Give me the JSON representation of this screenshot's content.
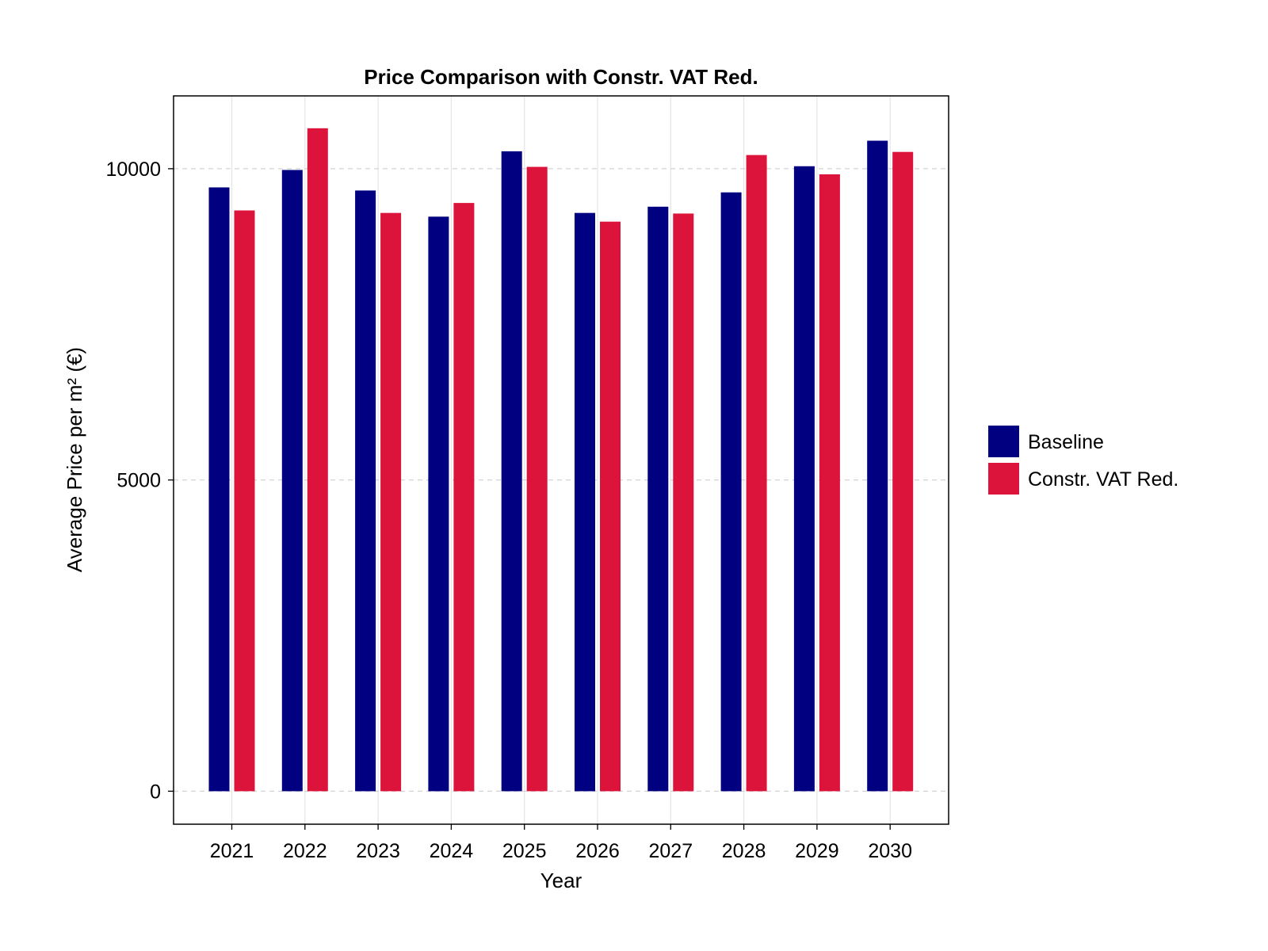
{
  "chart_data": {
    "type": "bar",
    "title": "Price Comparison with Constr. VAT Red.",
    "xlabel": "Year",
    "ylabel": "Average Price per m² (€)",
    "categories": [
      "2021",
      "2022",
      "2023",
      "2024",
      "2025",
      "2026",
      "2027",
      "2028",
      "2029",
      "2030"
    ],
    "series": [
      {
        "name": "Baseline",
        "color": "#000080",
        "values": [
          9700,
          9980,
          9650,
          9230,
          10280,
          9290,
          9390,
          9620,
          10040,
          10450
        ]
      },
      {
        "name": "Constr. VAT Red.",
        "color": "#DC143C",
        "values": [
          9330,
          10650,
          9290,
          9450,
          10030,
          9150,
          9280,
          10220,
          9910,
          10270
        ]
      }
    ],
    "yticks": [
      "0",
      "5000",
      "10000"
    ],
    "ylim": [
      -530,
      11170
    ],
    "grid": true,
    "legend_position": "right"
  }
}
